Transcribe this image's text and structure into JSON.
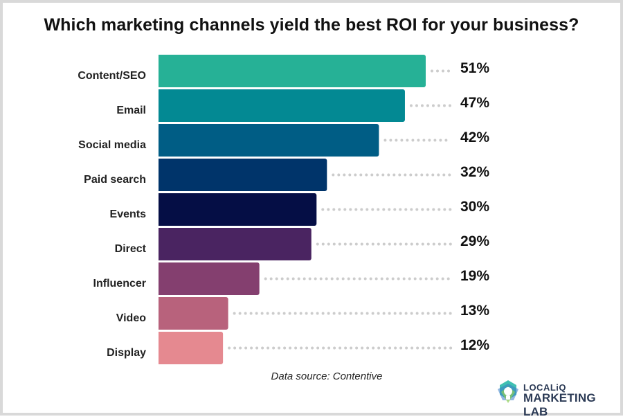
{
  "chart_data": {
    "type": "bar",
    "orientation": "horizontal",
    "title": "Which marketing channels yield the best ROI for your business?",
    "categories": [
      "Content/SEO",
      "Email",
      "Social media",
      "Paid search",
      "Events",
      "Direct",
      "Influencer",
      "Video",
      "Display"
    ],
    "values": [
      51,
      47,
      42,
      32,
      30,
      29,
      19,
      13,
      12
    ],
    "value_labels": [
      "51%",
      "47%",
      "42%",
      "32%",
      "30%",
      "29%",
      "19%",
      "13%",
      "12%"
    ],
    "colors": [
      "#26b196",
      "#038993",
      "#005d85",
      "#00346a",
      "#050e45",
      "#4a2461",
      "#843f6f",
      "#b8627c",
      "#e58990"
    ],
    "unit": "%",
    "xlim": [
      0,
      51
    ],
    "grid": false,
    "legend": "none",
    "source": "Data source: Contentive"
  },
  "brand": {
    "line1": "LOCALiQ",
    "line2": "MARKETING LAB",
    "colors": [
      "#2b3a55",
      "#1fb5a5",
      "#8ecf56",
      "#3a7cc8"
    ],
    "icon": "lightbulb-icon"
  }
}
